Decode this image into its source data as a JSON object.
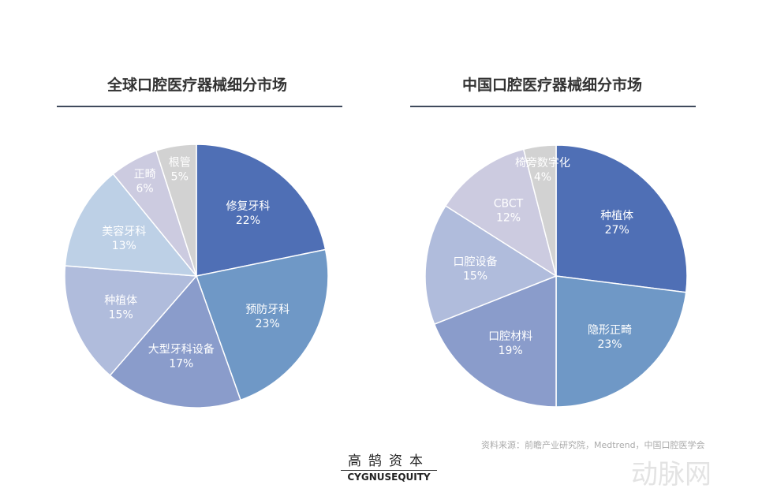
{
  "chart_data": [
    {
      "type": "pie",
      "title": "全球口腔医疗器械细分市场",
      "categories": [
        "修复牙科",
        "预防牙科",
        "大型牙科设备",
        "种植体",
        "美容牙科",
        "正畸",
        "根管"
      ],
      "values": [
        22,
        23,
        17,
        15,
        13,
        6,
        5
      ],
      "labels": [
        "22%",
        "23%",
        "17%",
        "15%",
        "13%",
        "6%",
        "5%"
      ],
      "colors": [
        "#4f6fb5",
        "#6f98c6",
        "#8a9ccb",
        "#b0bcdc",
        "#bdd0e6",
        "#cccbe0",
        "#d2d2d2"
      ]
    },
    {
      "type": "pie",
      "title": "中国口腔医疗器械细分市场",
      "categories": [
        "种植体",
        "隐形正畸",
        "口腔材料",
        "口腔设备",
        "CBCT",
        "椅旁数字化"
      ],
      "values": [
        27,
        23,
        19,
        15,
        12,
        4
      ],
      "labels": [
        "27%",
        "23%",
        "19%",
        "15%",
        "12%",
        "4%"
      ],
      "colors": [
        "#4f6fb5",
        "#6f98c6",
        "#8a9ccb",
        "#b0bcdc",
        "#cccbe0",
        "#d2d2d2"
      ]
    }
  ],
  "footer": {
    "logo_cn": "高鹄资本",
    "logo_en": "CYGNUSEQUITY",
    "source": "资料来源：前瞻产业研究院，Medtrend，中国口腔医学会",
    "watermark": "动脉网"
  }
}
